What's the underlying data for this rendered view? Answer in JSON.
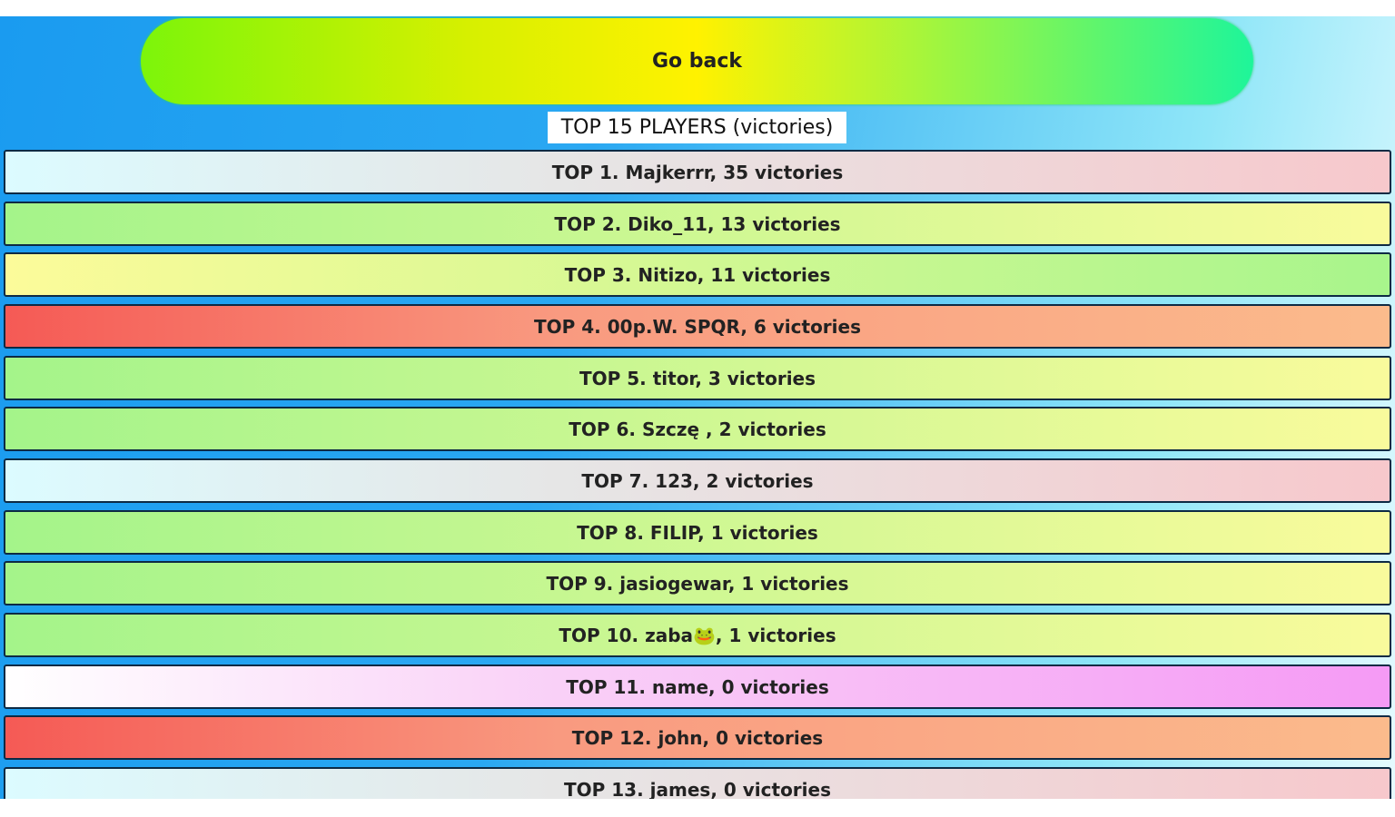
{
  "button": "Go back",
  "title": "TOP 15 PLAYERS (victories)",
  "rows": [
    "TOP 1. Majkerrr, 35 victories",
    "TOP 2.  Diko_11, 13 victories",
    "TOP 3. Nitizo, 11 victories",
    "TOP 4. 00p.W. SPQR, 6 victories",
    "TOP 5. titor, 3 victories",
    "TOP 6. Szczę , 2 victories",
    "TOP 7. 123, 2 victories",
    "TOP 8. FILIP, 1 victories",
    "TOP 9. jasiogewar, 1 victories",
    "TOP 10. zaba🐸, 1 victories",
    "TOP 11. name, 0 victories",
    "TOP 12. john, 0 victories",
    "TOP 13. james, 0 victories"
  ]
}
